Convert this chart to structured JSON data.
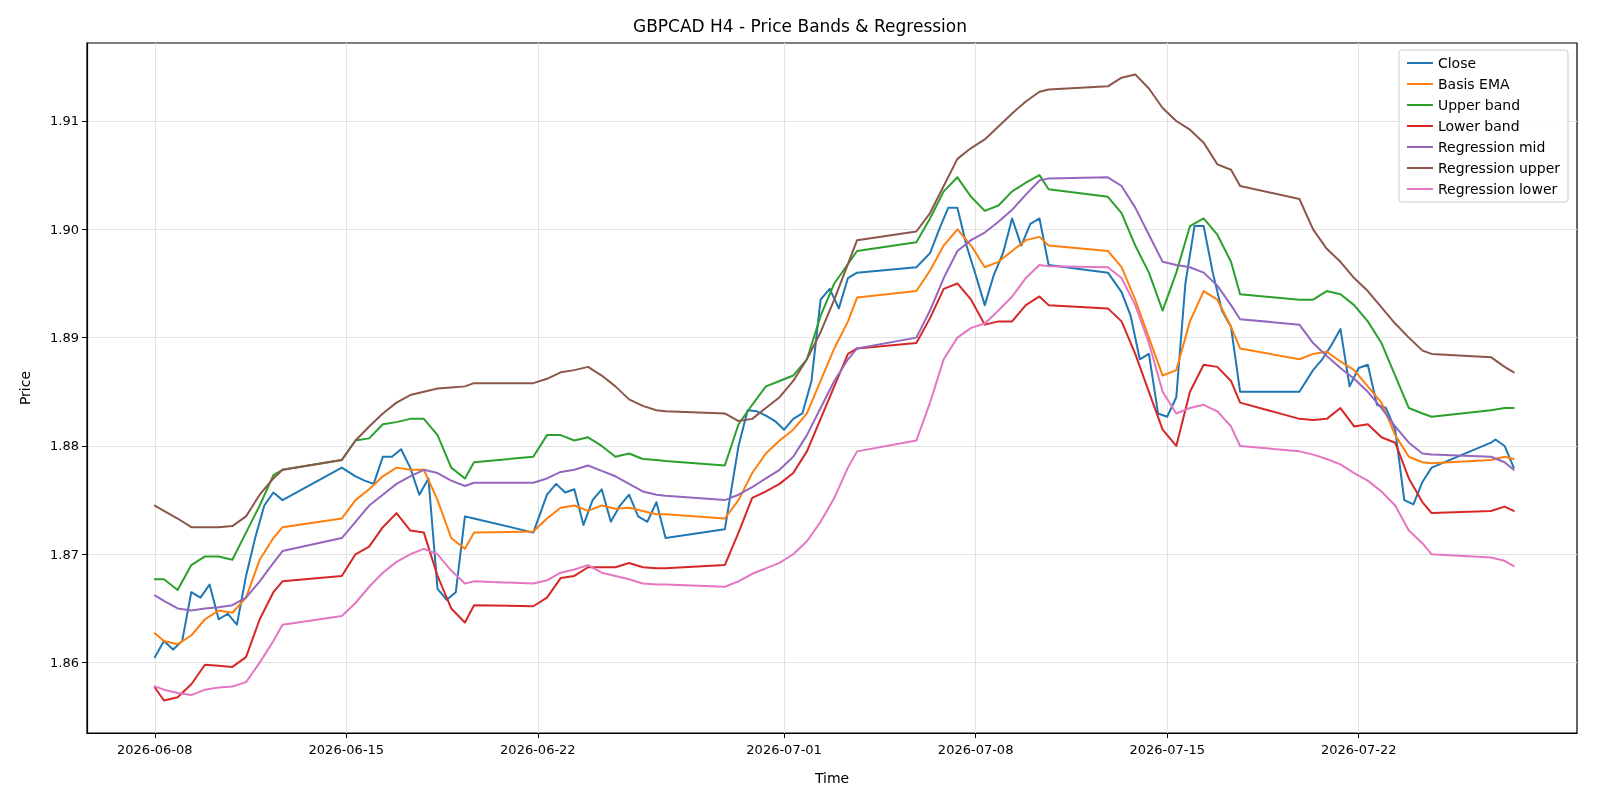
{
  "chart_data": {
    "type": "line",
    "title": "GBPCAD H4 - Price Bands & Regression",
    "xlabel": "Time",
    "ylabel": "Price",
    "xlim": [
      "2026-06-05T12:30",
      "2026-07-29T23:30"
    ],
    "xticks": [
      "2026-06-08",
      "2026-06-15",
      "2026-06-22",
      "2026-07-01",
      "2026-07-08",
      "2026-07-15",
      "2026-07-22"
    ],
    "ylim": [
      1.8535,
      1.9172
    ],
    "yticks": [
      1.86,
      1.87,
      1.88,
      1.89,
      {
        "value": 1.9,
        "label": "1.90"
      },
      1.91
    ],
    "grid": true,
    "legend": "top right",
    "marker": "none",
    "line_style": "solid",
    "x": [
      "2026-06-08T00:00",
      "2026-06-08T08:00",
      "2026-06-08T20:00",
      "2026-06-09T08:00",
      "2026-06-09T20:00",
      "2026-06-10T08:00",
      "2026-06-10T20:00",
      "2026-06-11T08:00",
      "2026-06-11T20:00",
      "2026-06-12T08:00",
      "2026-06-12T16:00",
      "2026-06-14T20:00",
      "2026-06-15T08:00",
      "2026-06-15T20:00",
      "2026-06-16T08:00",
      "2026-06-16T20:00",
      "2026-06-17T08:00",
      "2026-06-17T20:00",
      "2026-06-18T08:00",
      "2026-06-18T20:00",
      "2026-06-19T08:00",
      "2026-06-19T16:00",
      "2026-06-21T20:00",
      "2026-06-22T08:00",
      "2026-06-22T20:00",
      "2026-06-23T08:00",
      "2026-06-23T20:00",
      "2026-06-24T08:00",
      "2026-06-24T20:00",
      "2026-06-25T08:00",
      "2026-06-25T20:00",
      "2026-06-26T08:00",
      "2026-06-26T16:00",
      "2026-06-28T20:00",
      "2026-06-29T08:00",
      "2026-06-29T20:00",
      "2026-06-30T08:00",
      "2026-06-30T20:00",
      "2026-07-01T08:00",
      "2026-07-01T20:00",
      "2026-07-02T08:00",
      "2026-07-02T20:00",
      "2026-07-03T08:00",
      "2026-07-03T16:00",
      "2026-07-05T20:00",
      "2026-07-06T08:00",
      "2026-07-06T20:00",
      "2026-07-07T08:00",
      "2026-07-07T20:00",
      "2026-07-08T08:00",
      "2026-07-08T20:00",
      "2026-07-09T08:00",
      "2026-07-09T20:00",
      "2026-07-10T08:00",
      "2026-07-10T16:00",
      "2026-07-12T20:00",
      "2026-07-13T08:00",
      "2026-07-13T20:00",
      "2026-07-14T08:00",
      "2026-07-14T20:00",
      "2026-07-15T08:00",
      "2026-07-15T20:00",
      "2026-07-16T08:00",
      "2026-07-16T20:00",
      "2026-07-17T08:00",
      "2026-07-17T16:00",
      "2026-07-19T20:00",
      "2026-07-20T08:00",
      "2026-07-20T20:00",
      "2026-07-21T08:00",
      "2026-07-21T20:00",
      "2026-07-22T08:00",
      "2026-07-22T20:00",
      "2026-07-23T08:00",
      "2026-07-23T20:00",
      "2026-07-24T08:00",
      "2026-07-24T16:00",
      "2026-07-26T20:00",
      "2026-07-27T08:00",
      "2026-07-27T16:00"
    ],
    "series": [
      {
        "name": "Close",
        "color": "#1f77b4",
        "x": [
          "2026-06-08T00:00",
          "2026-06-08T08:00",
          "2026-06-08T16:00",
          "2026-06-09T00:00",
          "2026-06-09T08:00",
          "2026-06-09T16:00",
          "2026-06-10T00:00",
          "2026-06-10T08:00",
          "2026-06-10T16:00",
          "2026-06-11T00:00",
          "2026-06-11T08:00",
          "2026-06-11T16:00",
          "2026-06-12T00:00",
          "2026-06-12T08:00",
          "2026-06-12T16:00",
          "2026-06-14T20:00",
          "2026-06-15T08:00",
          "2026-06-15T16:00",
          "2026-06-16T00:00",
          "2026-06-16T08:00",
          "2026-06-16T16:00",
          "2026-06-17T00:00",
          "2026-06-17T08:00",
          "2026-06-17T16:00",
          "2026-06-18T00:00",
          "2026-06-18T08:00",
          "2026-06-18T16:00",
          "2026-06-19T00:00",
          "2026-06-19T08:00",
          "2026-06-19T16:00",
          "2026-06-21T20:00",
          "2026-06-22T08:00",
          "2026-06-22T16:00",
          "2026-06-23T00:00",
          "2026-06-23T08:00",
          "2026-06-23T16:00",
          "2026-06-24T00:00",
          "2026-06-24T08:00",
          "2026-06-24T16:00",
          "2026-06-25T00:00",
          "2026-06-25T08:00",
          "2026-06-25T16:00",
          "2026-06-26T00:00",
          "2026-06-26T08:00",
          "2026-06-26T16:00",
          "2026-06-28T20:00",
          "2026-06-29T08:00",
          "2026-06-29T16:00",
          "2026-06-30T00:00",
          "2026-06-30T08:00",
          "2026-06-30T16:00",
          "2026-07-01T00:00",
          "2026-07-01T08:00",
          "2026-07-01T16:00",
          "2026-07-02T00:00",
          "2026-07-02T08:00",
          "2026-07-02T16:00",
          "2026-07-03T00:00",
          "2026-07-03T08:00",
          "2026-07-03T16:00",
          "2026-07-05T20:00",
          "2026-07-06T08:00",
          "2026-07-06T16:00",
          "2026-07-07T00:00",
          "2026-07-07T08:00",
          "2026-07-07T16:00",
          "2026-07-08T00:00",
          "2026-07-08T08:00",
          "2026-07-08T16:00",
          "2026-07-09T00:00",
          "2026-07-09T08:00",
          "2026-07-09T16:00",
          "2026-07-10T00:00",
          "2026-07-10T08:00",
          "2026-07-10T16:00",
          "2026-07-12T20:00",
          "2026-07-13T08:00",
          "2026-07-13T16:00",
          "2026-07-14T00:00",
          "2026-07-14T08:00",
          "2026-07-14T16:00",
          "2026-07-15T00:00",
          "2026-07-15T08:00",
          "2026-07-15T16:00",
          "2026-07-16T00:00",
          "2026-07-16T08:00",
          "2026-07-16T16:00",
          "2026-07-17T00:00",
          "2026-07-17T08:00",
          "2026-07-17T16:00",
          "2026-07-19T20:00",
          "2026-07-20T08:00",
          "2026-07-20T16:00",
          "2026-07-21T00:00",
          "2026-07-21T08:00",
          "2026-07-21T16:00",
          "2026-07-22T00:00",
          "2026-07-22T08:00",
          "2026-07-22T16:00",
          "2026-07-23T00:00",
          "2026-07-23T08:00",
          "2026-07-23T16:00",
          "2026-07-24T00:00",
          "2026-07-24T08:00",
          "2026-07-24T16:00",
          "2026-07-26T20:00",
          "2026-07-27T00:00",
          "2026-07-27T08:00",
          "2026-07-27T16:00"
        ],
        "values": [
          1.8605,
          1.862,
          1.8612,
          1.862,
          1.8665,
          1.866,
          1.8672,
          1.864,
          1.8645,
          1.8635,
          1.868,
          1.8715,
          1.8745,
          1.8757,
          1.875,
          1.878,
          1.8772,
          1.8768,
          1.8765,
          1.879,
          1.879,
          1.8797,
          1.878,
          1.8755,
          1.877,
          1.8668,
          1.8658,
          1.8665,
          1.8735,
          1.8733,
          1.872,
          1.8755,
          1.8765,
          1.8757,
          1.876,
          1.8727,
          1.875,
          1.876,
          1.873,
          1.8745,
          1.8755,
          1.8735,
          1.873,
          1.8748,
          1.8715,
          1.8723,
          1.88,
          1.8833,
          1.8832,
          1.8828,
          1.8823,
          1.8815,
          1.8825,
          1.883,
          1.886,
          1.8935,
          1.8945,
          1.8927,
          1.8955,
          1.896,
          1.8965,
          1.8978,
          1.9,
          1.902,
          1.902,
          1.8985,
          1.8958,
          1.893,
          1.8958,
          1.8978,
          1.901,
          1.8985,
          1.9005,
          1.901,
          1.8967,
          1.896,
          1.8942,
          1.892,
          1.888,
          1.8885,
          1.883,
          1.8827,
          1.8845,
          1.895,
          1.9003,
          1.9003,
          1.896,
          1.8925,
          1.891,
          1.885,
          1.885,
          1.887,
          1.888,
          1.8893,
          1.8908,
          1.8855,
          1.8872,
          1.8875,
          1.8838,
          1.8835,
          1.8815,
          1.875,
          1.8746,
          1.8767,
          1.878,
          1.8803,
          1.8806,
          1.88,
          1.878
        ]
      },
      {
        "name": "Basis EMA",
        "color": "#ff7f0e",
        "values": [
          1.8627,
          1.862,
          1.8617,
          1.8625,
          1.864,
          1.8648,
          1.8646,
          1.866,
          1.8695,
          1.8715,
          1.8725,
          1.8733,
          1.875,
          1.876,
          1.8772,
          1.878,
          1.8778,
          1.8778,
          1.875,
          1.8715,
          1.8705,
          1.872,
          1.8721,
          1.8733,
          1.8743,
          1.8745,
          1.874,
          1.8745,
          1.8742,
          1.8743,
          1.874,
          1.8737,
          1.8737,
          1.8733,
          1.875,
          1.8775,
          1.8793,
          1.8805,
          1.8815,
          1.883,
          1.886,
          1.889,
          1.8915,
          1.8937,
          1.8943,
          1.8962,
          1.8985,
          1.9,
          1.8985,
          1.8965,
          1.897,
          1.898,
          1.899,
          1.8993,
          1.8985,
          1.898,
          1.8965,
          1.8935,
          1.89,
          1.8865,
          1.887,
          1.8915,
          1.8943,
          1.8935,
          1.891,
          1.889,
          1.888,
          1.8885,
          1.8887,
          1.8878,
          1.887,
          1.8855,
          1.884,
          1.881,
          1.879,
          1.8785,
          1.8784,
          1.8787,
          1.879,
          1.8788
        ]
      },
      {
        "name": "Upper band",
        "color": "#2ca02c",
        "values": [
          1.8677,
          1.8677,
          1.8667,
          1.869,
          1.8698,
          1.8698,
          1.8695,
          1.872,
          1.8745,
          1.8773,
          1.8778,
          1.8787,
          1.8805,
          1.8807,
          1.882,
          1.8822,
          1.8825,
          1.8825,
          1.881,
          1.878,
          1.877,
          1.8785,
          1.879,
          1.881,
          1.881,
          1.8805,
          1.8808,
          1.88,
          1.879,
          1.8793,
          1.8788,
          1.8787,
          1.8786,
          1.8782,
          1.882,
          1.8838,
          1.8855,
          1.886,
          1.8865,
          1.888,
          1.892,
          1.895,
          1.8968,
          1.898,
          1.8988,
          1.901,
          1.9035,
          1.9048,
          1.903,
          1.9017,
          1.9022,
          1.9035,
          1.9043,
          1.905,
          1.9037,
          1.903,
          1.9015,
          1.8985,
          1.896,
          1.8925,
          1.896,
          1.9003,
          1.901,
          1.8995,
          1.897,
          1.894,
          1.8935,
          1.8935,
          1.8943,
          1.894,
          1.893,
          1.8915,
          1.8895,
          1.8865,
          1.8835,
          1.883,
          1.8827,
          1.8833,
          1.8835,
          1.8835
        ]
      },
      {
        "name": "Lower band",
        "color": "#d62728",
        "values": [
          1.8577,
          1.8565,
          1.8568,
          1.858,
          1.8598,
          1.8597,
          1.8596,
          1.8605,
          1.864,
          1.8665,
          1.8675,
          1.868,
          1.87,
          1.8707,
          1.8725,
          1.8738,
          1.8722,
          1.872,
          1.868,
          1.865,
          1.8637,
          1.8653,
          1.8652,
          1.866,
          1.8678,
          1.868,
          1.8688,
          1.8688,
          1.8688,
          1.8692,
          1.8688,
          1.8687,
          1.8687,
          1.869,
          1.872,
          1.8752,
          1.8758,
          1.8765,
          1.8775,
          1.8795,
          1.8825,
          1.8855,
          1.8885,
          1.889,
          1.8895,
          1.8918,
          1.8945,
          1.895,
          1.8935,
          1.8912,
          1.8915,
          1.8915,
          1.893,
          1.8938,
          1.893,
          1.8927,
          1.8915,
          1.8885,
          1.885,
          1.8815,
          1.88,
          1.885,
          1.8875,
          1.8873,
          1.886,
          1.884,
          1.8825,
          1.8824,
          1.8825,
          1.8835,
          1.8818,
          1.882,
          1.8808,
          1.8803,
          1.877,
          1.8748,
          1.8738,
          1.874,
          1.8744,
          1.874
        ]
      },
      {
        "name": "Regression mid",
        "color": "#9467bd",
        "values": [
          1.8662,
          1.8657,
          1.865,
          1.8648,
          1.865,
          1.8651,
          1.8653,
          1.866,
          1.8675,
          1.8692,
          1.8703,
          1.8715,
          1.873,
          1.8745,
          1.8755,
          1.8765,
          1.8772,
          1.8778,
          1.8775,
          1.8768,
          1.8763,
          1.8766,
          1.8766,
          1.877,
          1.8776,
          1.8778,
          1.8782,
          1.8777,
          1.8772,
          1.8765,
          1.8758,
          1.8755,
          1.8754,
          1.875,
          1.8755,
          1.8762,
          1.877,
          1.8778,
          1.879,
          1.881,
          1.8835,
          1.886,
          1.888,
          1.889,
          1.89,
          1.8925,
          1.8955,
          1.898,
          1.899,
          1.8997,
          1.9007,
          1.9018,
          1.9032,
          1.9045,
          1.9047,
          1.9048,
          1.904,
          1.902,
          1.8995,
          1.897,
          1.8967,
          1.8965,
          1.896,
          1.8948,
          1.893,
          1.8917,
          1.8912,
          1.8895,
          1.8883,
          1.8872,
          1.8862,
          1.885,
          1.8835,
          1.8818,
          1.8803,
          1.8793,
          1.8792,
          1.879,
          1.8785,
          1.8778
        ]
      },
      {
        "name": "Regression upper",
        "color": "#8c564b",
        "values": [
          1.8745,
          1.874,
          1.8733,
          1.8725,
          1.8725,
          1.8725,
          1.8726,
          1.8735,
          1.8755,
          1.877,
          1.8778,
          1.8787,
          1.8805,
          1.8818,
          1.883,
          1.884,
          1.8847,
          1.885,
          1.8853,
          1.8854,
          1.8855,
          1.8858,
          1.8858,
          1.8862,
          1.8868,
          1.887,
          1.8873,
          1.8865,
          1.8855,
          1.8843,
          1.8837,
          1.8833,
          1.8832,
          1.883,
          1.8823,
          1.8825,
          1.8835,
          1.8845,
          1.886,
          1.888,
          1.8905,
          1.8935,
          1.8968,
          1.899,
          1.8998,
          1.9015,
          1.904,
          1.9065,
          1.9075,
          1.9083,
          1.9095,
          1.9107,
          1.9118,
          1.9127,
          1.9129,
          1.9132,
          1.914,
          1.9143,
          1.913,
          1.9112,
          1.91,
          1.9092,
          1.908,
          1.906,
          1.9055,
          1.904,
          1.9028,
          1.9,
          1.8982,
          1.897,
          1.8955,
          1.8943,
          1.8928,
          1.8913,
          1.89,
          1.8888,
          1.8885,
          1.8882,
          1.8873,
          1.8868
        ]
      },
      {
        "name": "Regression lower",
        "color": "#e377c2",
        "values": [
          1.8578,
          1.8575,
          1.8572,
          1.857,
          1.8575,
          1.8577,
          1.8578,
          1.8582,
          1.86,
          1.862,
          1.8635,
          1.8643,
          1.8655,
          1.867,
          1.8683,
          1.8693,
          1.87,
          1.8705,
          1.87,
          1.8685,
          1.8673,
          1.8675,
          1.8673,
          1.8676,
          1.8683,
          1.8686,
          1.869,
          1.8683,
          1.868,
          1.8677,
          1.8673,
          1.8672,
          1.8672,
          1.867,
          1.8675,
          1.8682,
          1.8687,
          1.8692,
          1.87,
          1.8712,
          1.873,
          1.8752,
          1.878,
          1.8795,
          1.8805,
          1.884,
          1.888,
          1.89,
          1.8909,
          1.8913,
          1.8925,
          1.8938,
          1.8955,
          1.8967,
          1.8966,
          1.8965,
          1.8955,
          1.893,
          1.8895,
          1.885,
          1.883,
          1.8835,
          1.8838,
          1.8832,
          1.8818,
          1.88,
          1.8795,
          1.8792,
          1.8788,
          1.8783,
          1.8775,
          1.8768,
          1.8758,
          1.8745,
          1.8722,
          1.871,
          1.87,
          1.8697,
          1.8694,
          1.8689
        ]
      }
    ]
  }
}
